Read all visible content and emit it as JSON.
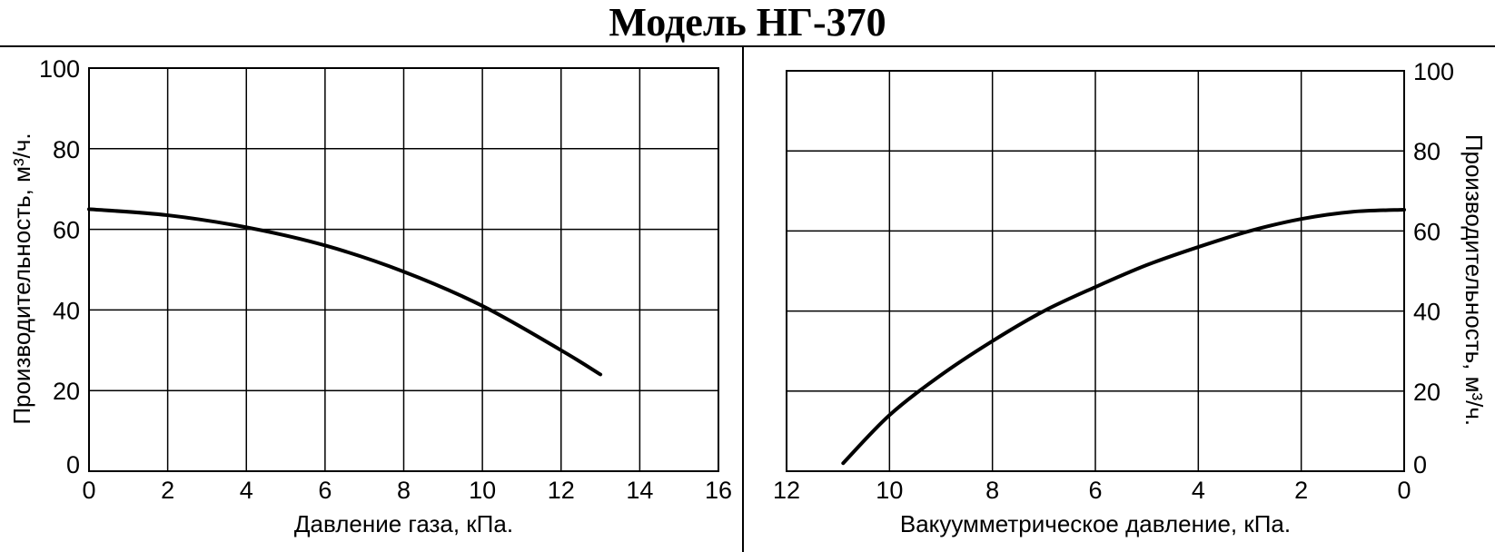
{
  "title": "Модель НГ-370",
  "chart_data": [
    {
      "type": "line",
      "xlabel": "Давление газа, кПа.",
      "ylabel": "Производительность, м³/ч.",
      "xlim": [
        0,
        16
      ],
      "ylim": [
        0,
        100
      ],
      "x_ticks": [
        "0",
        "2",
        "4",
        "6",
        "8",
        "10",
        "12",
        "14",
        "16"
      ],
      "y_ticks": [
        "0",
        "20",
        "40",
        "60",
        "80",
        "100"
      ],
      "grid": true,
      "series": [
        {
          "x": [
            0,
            2,
            4,
            6,
            8,
            10,
            12,
            13
          ],
          "y": [
            65,
            63.5,
            60.5,
            56,
            49.5,
            41,
            30,
            24
          ]
        }
      ]
    },
    {
      "type": "line",
      "xlabel": "Вакуумметрическое давление, кПа.",
      "ylabel": "Производительность, м³/ч.",
      "xlim": [
        12,
        0
      ],
      "ylim": [
        0,
        100
      ],
      "x_ticks": [
        "12",
        "10",
        "8",
        "6",
        "4",
        "2",
        "0"
      ],
      "y_ticks": [
        "0",
        "20",
        "40",
        "60",
        "80",
        "100"
      ],
      "grid": true,
      "y_axis_side": "right",
      "series": [
        {
          "x": [
            10.9,
            10,
            9,
            8,
            7,
            6,
            5,
            4,
            3,
            2,
            1,
            0
          ],
          "y": [
            2,
            14,
            24,
            32.5,
            40,
            46,
            51.5,
            56,
            60,
            63,
            64.8,
            65.3
          ]
        }
      ]
    }
  ]
}
